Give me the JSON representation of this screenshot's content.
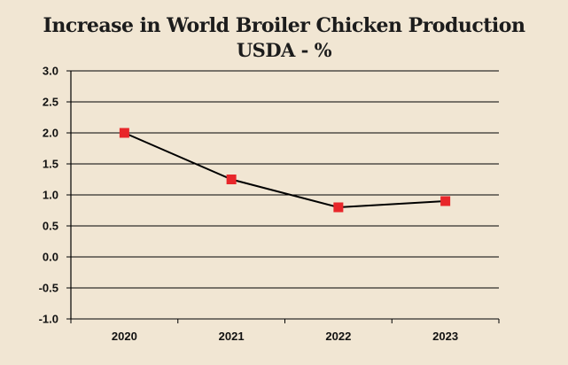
{
  "chart_data": {
    "type": "line",
    "title": "Increase in World Broiler Chicken Production",
    "subtitle": "USDA - %",
    "xlabel": "",
    "ylabel": "",
    "categories": [
      "2020",
      "2021",
      "2022",
      "2023"
    ],
    "series": [
      {
        "values": [
          2.0,
          1.25,
          0.8,
          0.9
        ]
      }
    ],
    "ylim": [
      -1.0,
      3.0
    ],
    "yticks": [
      "3.0",
      "2.5",
      "2.0",
      "1.5",
      "1.0",
      "0.5",
      "0.0",
      "-0.5",
      "-1.0"
    ],
    "grid": true,
    "legend": "none",
    "colors": {
      "line": "#000000",
      "marker": "#e8262a",
      "background": "#f1e6d3"
    }
  }
}
